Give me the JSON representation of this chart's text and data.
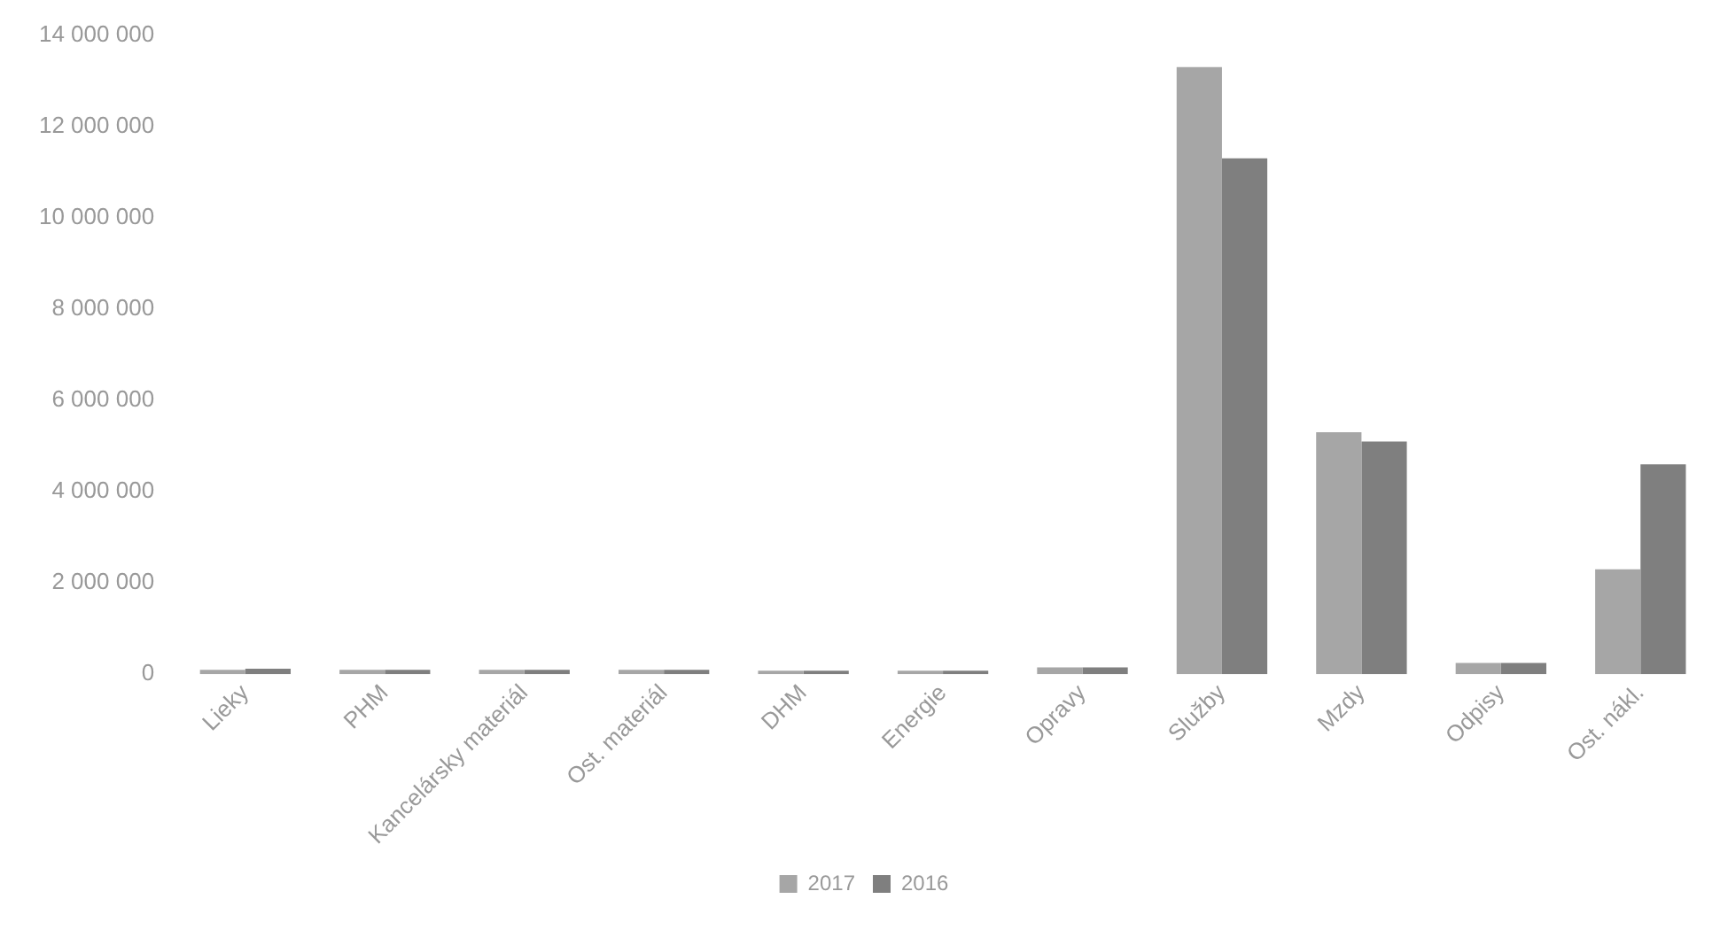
{
  "chart_data": {
    "type": "bar",
    "categories": [
      "Lieky",
      "PHM",
      "Kancelársky materiál",
      "Ost. materiál",
      "DHM",
      "Energie",
      "Opravy",
      "Služby",
      "Mzdy",
      "Odpisy",
      "Ost. nákl."
    ],
    "series": [
      {
        "name": "2017",
        "color": "#a6a6a6",
        "values": [
          100000,
          100000,
          100000,
          100000,
          80000,
          80000,
          150000,
          13300000,
          5300000,
          250000,
          2300000
        ]
      },
      {
        "name": "2016",
        "color": "#7f7f7f",
        "values": [
          120000,
          100000,
          100000,
          100000,
          80000,
          80000,
          150000,
          11300000,
          5100000,
          250000,
          4600000
        ]
      }
    ],
    "ylim": [
      0,
      14000000
    ],
    "yticks": [
      {
        "value": 0,
        "label": "0"
      },
      {
        "value": 2000000,
        "label": "2 000 000"
      },
      {
        "value": 4000000,
        "label": "4 000 000"
      },
      {
        "value": 6000000,
        "label": "6 000 000"
      },
      {
        "value": 8000000,
        "label": "8 000 000"
      },
      {
        "value": 10000000,
        "label": "10 000 000"
      },
      {
        "value": 12000000,
        "label": "12 000 000"
      },
      {
        "value": 14000000,
        "label": "14 000 000"
      }
    ],
    "grid": false,
    "legend": "bottom"
  }
}
